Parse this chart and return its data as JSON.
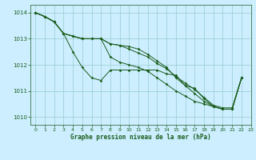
{
  "title": "Graphe pression niveau de la mer (hPa)",
  "bg_color": "#cceeff",
  "grid_color": "#99cccc",
  "line_color": "#1a5c1a",
  "xlim": [
    -0.5,
    23
  ],
  "ylim": [
    1009.7,
    1014.3
  ],
  "yticks": [
    1010,
    1011,
    1012,
    1013,
    1014
  ],
  "xticks": [
    0,
    1,
    2,
    3,
    4,
    5,
    6,
    7,
    8,
    9,
    10,
    11,
    12,
    13,
    14,
    15,
    16,
    17,
    18,
    19,
    20,
    21,
    22,
    23
  ],
  "s1": [
    1014.0,
    1013.85,
    1013.65,
    1013.2,
    1012.5,
    1011.9,
    1011.5,
    1011.4,
    1011.8,
    1011.8,
    1011.8,
    1011.8,
    1011.8,
    1011.8,
    1011.65,
    1011.6,
    1011.2,
    1011.1,
    1010.7,
    1010.4,
    1010.3,
    1010.3,
    1011.5,
    null
  ],
  "s2": [
    1014.0,
    1013.85,
    1013.65,
    1013.2,
    1013.1,
    1013.0,
    1013.0,
    1013.0,
    1012.3,
    1012.1,
    1012.0,
    1011.9,
    1011.75,
    1011.5,
    1011.25,
    1011.0,
    1010.8,
    1010.6,
    1010.5,
    1010.4,
    1010.3,
    1010.3,
    1011.5,
    null
  ],
  "s3": [
    1014.0,
    1013.85,
    1013.65,
    1013.2,
    1013.1,
    1013.0,
    1013.0,
    1013.0,
    1012.8,
    1012.75,
    1012.7,
    1012.6,
    1012.4,
    1012.15,
    1011.9,
    1011.5,
    1011.2,
    1010.9,
    1010.6,
    1010.4,
    1010.3,
    1010.3,
    1011.5,
    null
  ],
  "s4": [
    1014.0,
    1013.85,
    1013.65,
    1013.2,
    1013.1,
    1013.0,
    1013.0,
    1013.0,
    1012.8,
    1012.75,
    1012.6,
    1012.45,
    1012.3,
    1012.05,
    1011.85,
    1011.55,
    1011.3,
    1011.05,
    1010.75,
    1010.45,
    1010.35,
    1010.35,
    1011.5,
    null
  ]
}
